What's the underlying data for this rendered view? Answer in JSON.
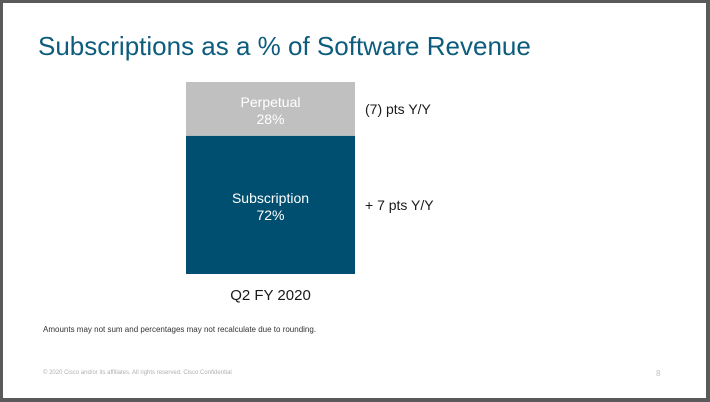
{
  "slide": {
    "title": "Subscriptions as a % of Software Revenue",
    "footnote": "Amounts may not sum and percentages may not recalculate due to rounding.",
    "copyright": "© 2020  Cisco and/or its affiliates. All rights reserved.   Cisco Confidential",
    "page_number": "8"
  },
  "chart_data": {
    "type": "bar",
    "stacked": true,
    "categories": [
      "Q2 FY 2020"
    ],
    "series": [
      {
        "name": "Subscription",
        "values": [
          72
        ],
        "label": "72%",
        "color": "#004f70",
        "text_color": "#ffffff",
        "annotation": "+ 7 pts Y/Y"
      },
      {
        "name": "Perpetual",
        "values": [
          28
        ],
        "label": "28%",
        "color": "#c0c0c0",
        "text_color": "#ffffff",
        "annotation": "(7) pts Y/Y"
      }
    ],
    "ylim": [
      0,
      100
    ],
    "grid": false,
    "legend": "none"
  }
}
